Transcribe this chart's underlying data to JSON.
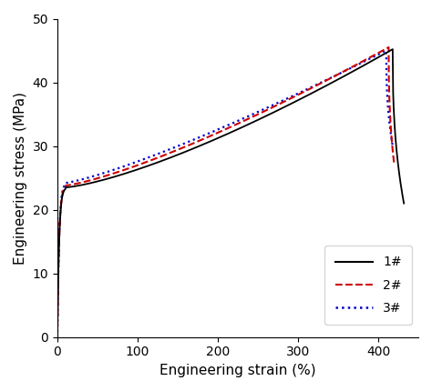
{
  "xlabel": "Engineering strain (%)",
  "ylabel": "Engineering stress (MPa)",
  "xlim": [
    0,
    450
  ],
  "ylim": [
    0,
    50
  ],
  "xticks": [
    0,
    100,
    200,
    300,
    400
  ],
  "yticks": [
    0,
    10,
    20,
    30,
    40,
    50
  ],
  "legend_labels": [
    "1#",
    "2#",
    "3#"
  ],
  "legend_colors": [
    "#000000",
    "#cc0000",
    "#0000cc"
  ],
  "figsize": [
    4.74,
    4.3
  ],
  "dpi": 100,
  "ylabel_fontsize": 11,
  "xlabel_fontsize": 11,
  "tick_fontsize": 10,
  "legend_fontsize": 10
}
